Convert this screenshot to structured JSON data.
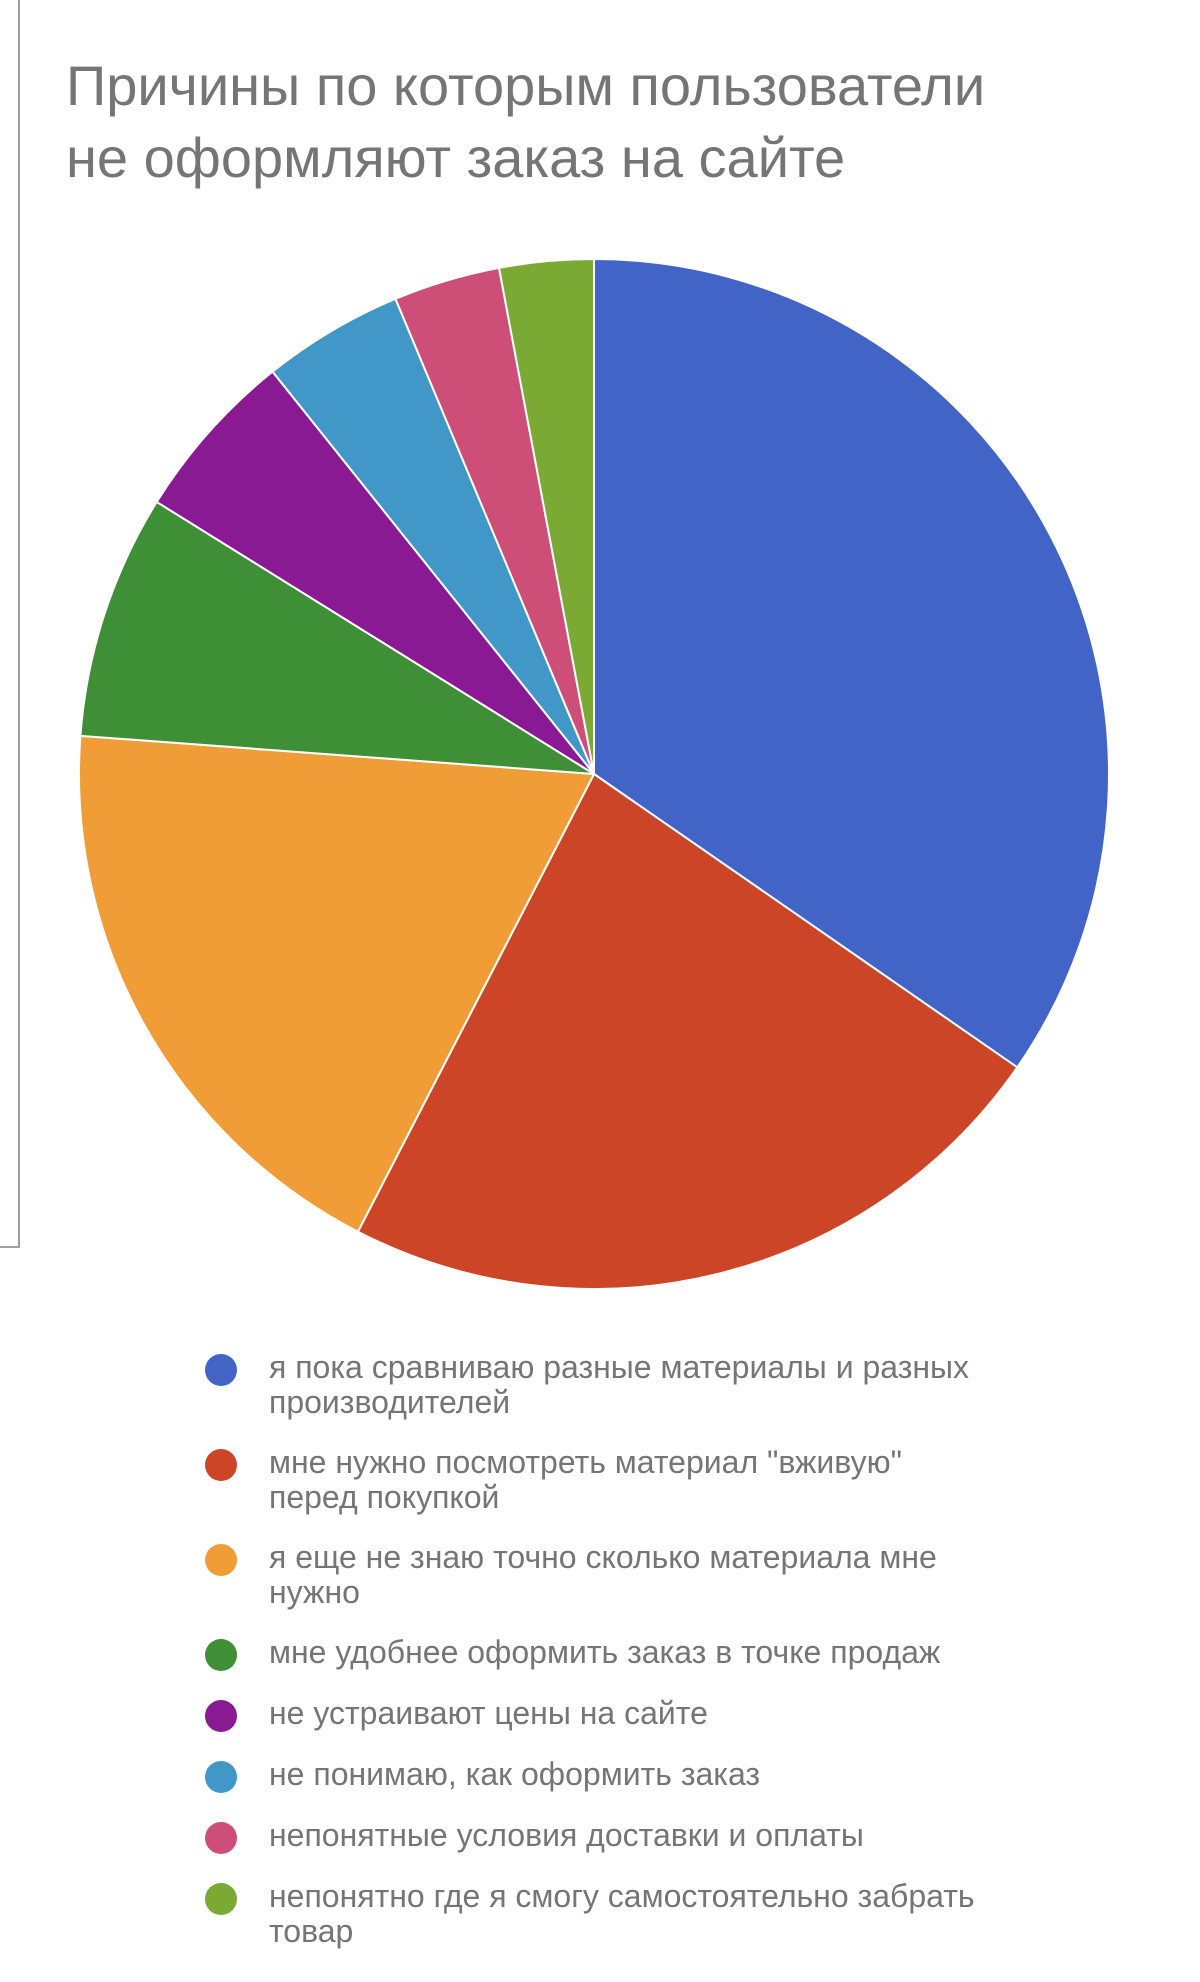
{
  "chart_data": {
    "type": "pie",
    "title": [
      "Причины по которым пользователи",
      "не оформляют заказ на сайте"
    ],
    "legend_position": "bottom",
    "slices": [
      {
        "label": "я пока сравниваю разные материалы и разных производителей",
        "value": 35.2,
        "color": "#4264C6"
      },
      {
        "label": "мне нужно посмотреть материал \"вживую\" перед покупкой",
        "value": 23.3,
        "color": "#CC4526"
      },
      {
        "label": "я еще не знаю точно сколько материала мне нужно",
        "value": 18.9,
        "color": "#F09D38"
      },
      {
        "label": "мне удобнее оформить заказ в точке продаж",
        "value": 7.8,
        "color": "#3E8F35"
      },
      {
        "label": "не устраивают цены на сайте",
        "value": 5.5,
        "color": "#8A1A94"
      },
      {
        "label": "не понимаю, как оформить заказ",
        "value": 4.5,
        "color": "#4197C8"
      },
      {
        "label": "непонятные условия доставки и оплаты",
        "value": 3.4,
        "color": "#CD4E77"
      },
      {
        "label": "непонятно где я смогу самостоятельно забрать товар",
        "value": 3.0,
        "color": "#7AAA33"
      }
    ]
  }
}
